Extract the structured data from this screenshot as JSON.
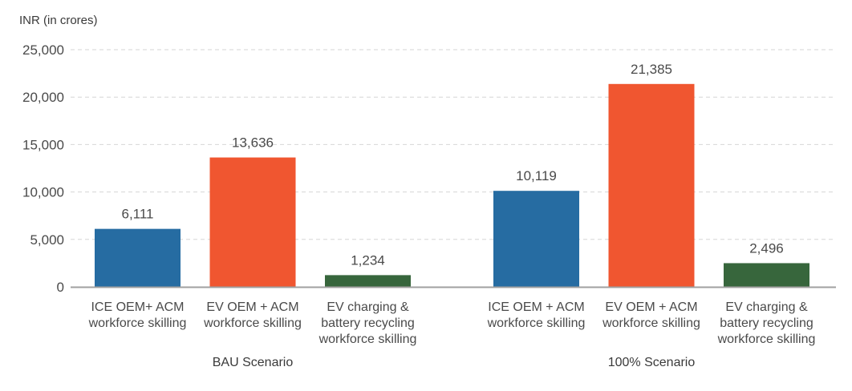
{
  "chart_data": {
    "type": "bar",
    "title": "",
    "ylabel": "INR (in crores)",
    "xlabel": "",
    "ylim": [
      0,
      25000
    ],
    "yticks": [
      0,
      5000,
      10000,
      15000,
      20000,
      25000
    ],
    "ytick_labels": [
      "0",
      "5,000",
      "10,000",
      "15,000",
      "20,000",
      "25,000"
    ],
    "grid": true,
    "legend": "none",
    "groups": [
      {
        "name": "BAU Scenario",
        "bars": [
          {
            "category": [
              "ICE OEM+ ACM",
              "workforce skilling"
            ],
            "value": 6111,
            "label": "6,111",
            "color": "#266ca2"
          },
          {
            "category": [
              "EV OEM + ACM",
              "workforce skilling"
            ],
            "value": 13636,
            "label": "13,636",
            "color": "#f05630"
          },
          {
            "category": [
              "EV charging &",
              "battery recycling",
              "workforce skilling"
            ],
            "value": 1234,
            "label": "1,234",
            "color": "#37663c"
          }
        ]
      },
      {
        "name": "100% Scenario",
        "bars": [
          {
            "category": [
              "ICE OEM + ACM",
              "workforce skilling"
            ],
            "value": 10119,
            "label": "10,119",
            "color": "#266ca2"
          },
          {
            "category": [
              "EV OEM + ACM",
              "workforce skilling"
            ],
            "value": 21385,
            "label": "21,385",
            "color": "#f05630"
          },
          {
            "category": [
              "EV charging &",
              "battery recycling",
              "workforce skilling"
            ],
            "value": 2496,
            "label": "2,496",
            "color": "#37663c"
          }
        ]
      }
    ]
  }
}
